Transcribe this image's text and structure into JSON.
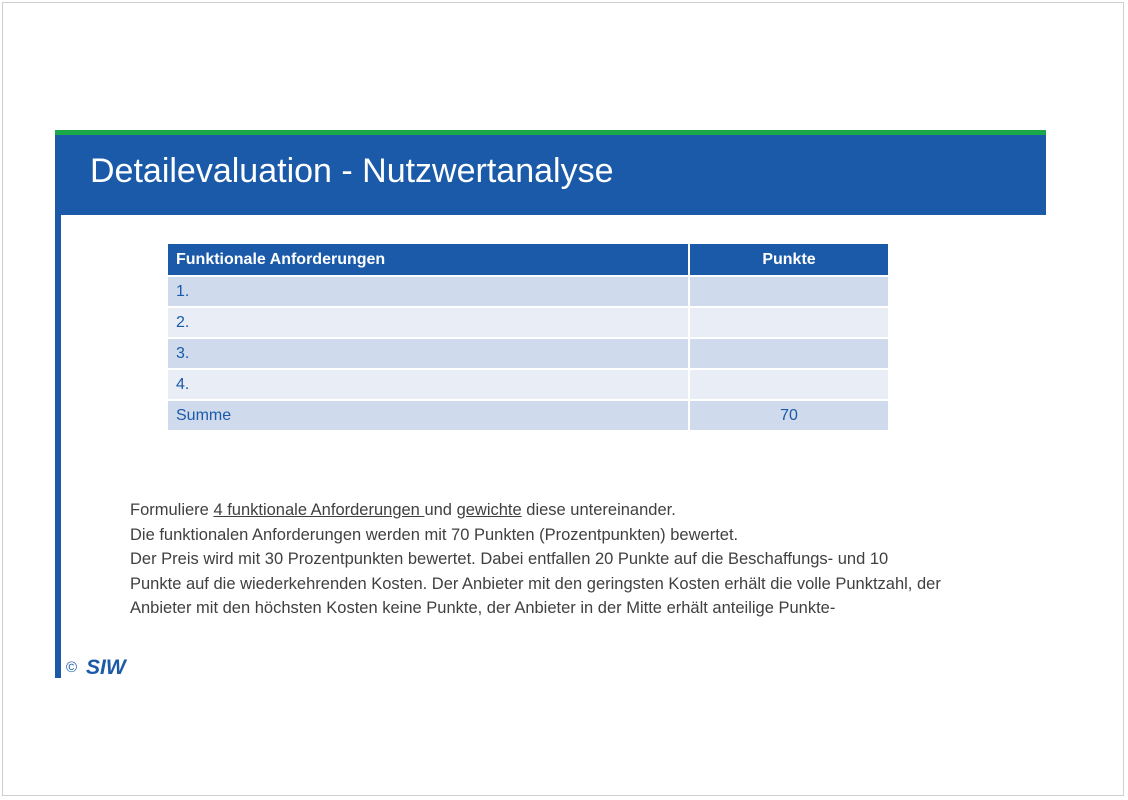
{
  "slide": {
    "title": "Detailevaluation - Nutzwertanalyse"
  },
  "table": {
    "headers": [
      "Funktionale Anforderungen",
      "Punkte"
    ],
    "rows": [
      {
        "label": "1.",
        "points": ""
      },
      {
        "label": "2.",
        "points": ""
      },
      {
        "label": "3.",
        "points": ""
      },
      {
        "label": "4.",
        "points": ""
      },
      {
        "label": "Summe",
        "points": "70"
      }
    ]
  },
  "text": {
    "line1": {
      "prefix": "Formuliere ",
      "link1": "4 funktionale Anforderungen ",
      "middle": "und ",
      "link2": "gewichte",
      "suffix": " diese untereinander."
    },
    "line2": "Die funktionalen Anforderungen werden mit 70 Punkten (Prozentpunkten) bewertet.",
    "line3": "Der Preis wird mit 30 Prozentpunkten bewertet. Dabei entfallen 20 Punkte auf die Beschaffungs- und 10",
    "line4": "Punkte auf die wiederkehrenden Kosten. Der Anbieter mit den geringsten Kosten erhält die volle Punktzahl, der",
    "line5": "Anbieter mit den höchsten Kosten keine Punkte, der Anbieter in der Mitte erhält anteilige Punkte-"
  },
  "footer": {
    "copyright": "©",
    "logo_text": "SIW"
  },
  "colors": {
    "brand_blue": "#1a5aa8",
    "accent_green": "#1aa84a",
    "row_odd": "#cfdaec",
    "row_even": "#e8edf6"
  }
}
